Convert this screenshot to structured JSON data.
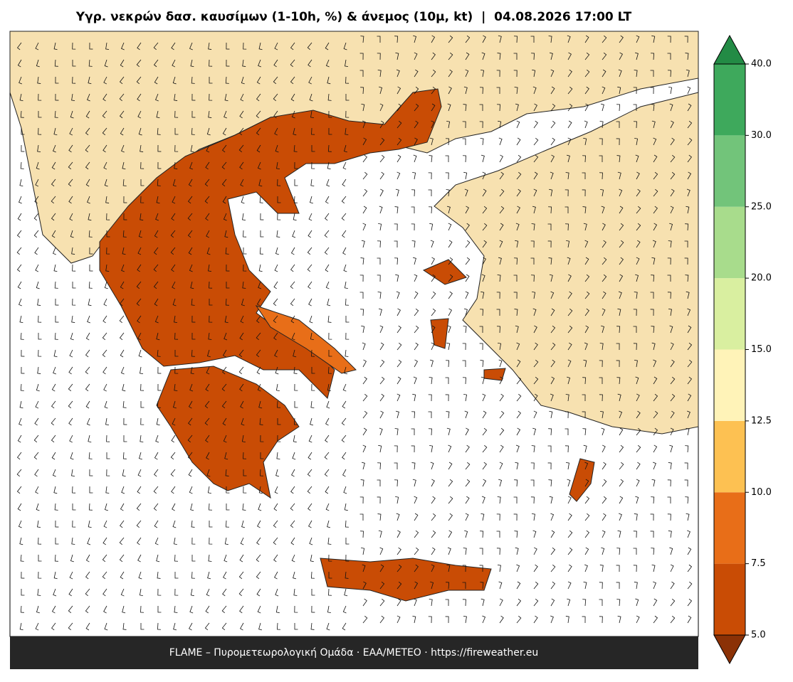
{
  "title": "Υγρ. νεκρών δασ. καυσίμων (1-10h, %) & άνεμος (10μ, kt)  |  04.08.2026 17:00 LT",
  "footer": "FLAME – Πυρομετεωρολογική Ομάδα · ΕΑΑ/METEO · https://fireweather.eu",
  "colorbar": {
    "ticks": [
      {
        "value": 5,
        "label": "5.0"
      },
      {
        "value": 7.5,
        "label": "7.5"
      },
      {
        "value": 10,
        "label": "10.0"
      },
      {
        "value": 12.5,
        "label": "12.5"
      },
      {
        "value": 15,
        "label": "15.0"
      },
      {
        "value": 20,
        "label": "20.0"
      },
      {
        "value": 25,
        "label": "25.0"
      },
      {
        "value": 30,
        "label": "30.0"
      },
      {
        "value": 40,
        "label": "40.0"
      }
    ],
    "colors": [
      "#c94c05",
      "#e86e18",
      "#fdc152",
      "#fff3b8",
      "#d9efa0",
      "#a8dc8c",
      "#72c47a",
      "#3ea95c"
    ],
    "under_color": "#8b3106",
    "over_color": "#238b45"
  }
}
